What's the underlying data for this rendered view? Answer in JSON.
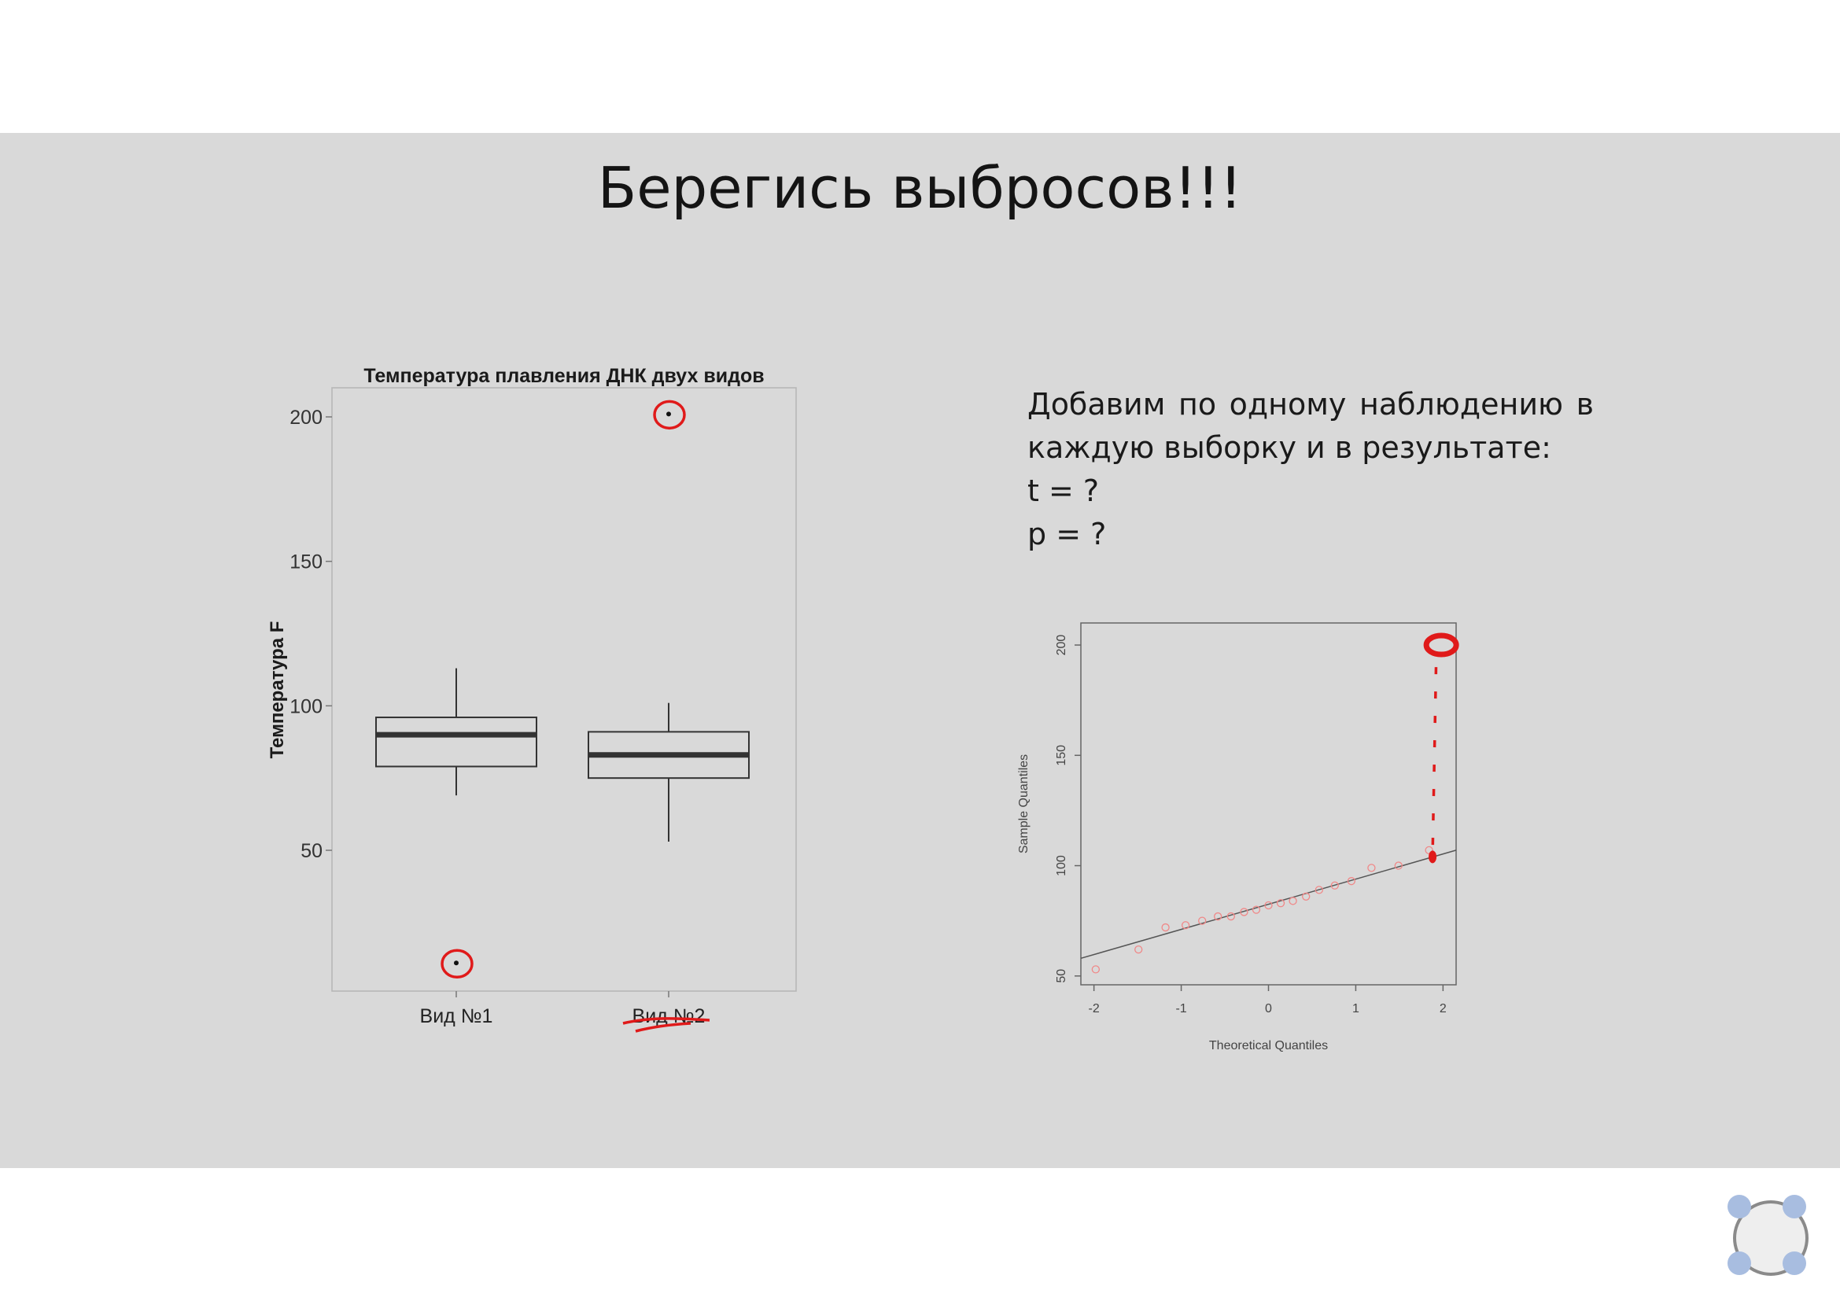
{
  "slide": {
    "title": "Берегись выбросов!!!",
    "text_lines": [
      [
        "Добавим",
        "по",
        "одному",
        "наблюдению",
        "в"
      ],
      "каждую выборку и в результате:",
      "t = ?",
      "p = ?"
    ]
  },
  "chart_data": [
    {
      "type": "boxplot",
      "title": "Температура плавления ДНК двух видов",
      "xlabel": "",
      "ylabel": "Температура F",
      "ylim": [
        0,
        210
      ],
      "y_ticks": [
        50,
        100,
        150,
        200
      ],
      "categories": [
        "Вид №1",
        "Вид №2"
      ],
      "boxes": [
        {
          "name": "Вид №1",
          "whisker_low": 69,
          "q1": 79,
          "median": 90,
          "q3": 96,
          "whisker_high": 113,
          "outliers": [
            11
          ]
        },
        {
          "name": "Вид №2",
          "whisker_low": 53,
          "q1": 75,
          "median": 83,
          "q3": 91,
          "whisker_high": 101,
          "outliers": [
            201
          ]
        }
      ],
      "annotations": "red circles around outliers, red underline under Вид №2"
    },
    {
      "type": "scatter",
      "title": "",
      "xlabel": "Theoretical Quantiles",
      "ylabel": "Sample Quantiles",
      "xlim": [
        -2.15,
        2.15
      ],
      "ylim": [
        46,
        210
      ],
      "x_ticks": [
        -2,
        -1,
        0,
        1,
        2
      ],
      "y_ticks": [
        50,
        100,
        150,
        200
      ],
      "points": [
        [
          -1.98,
          53
        ],
        [
          -1.49,
          62
        ],
        [
          -1.18,
          72
        ],
        [
          -0.95,
          73
        ],
        [
          -0.76,
          75
        ],
        [
          -0.58,
          77
        ],
        [
          -0.43,
          77
        ],
        [
          -0.28,
          79
        ],
        [
          -0.14,
          80
        ],
        [
          0.0,
          82
        ],
        [
          0.14,
          83
        ],
        [
          0.28,
          84
        ],
        [
          0.43,
          86
        ],
        [
          0.58,
          89
        ],
        [
          0.76,
          91
        ],
        [
          0.95,
          93
        ],
        [
          1.18,
          99
        ],
        [
          1.49,
          100
        ],
        [
          1.84,
          107
        ]
      ],
      "reference_line": [
        [
          -2.15,
          58
        ],
        [
          2.15,
          107
        ]
      ],
      "annotations": "red circle around a point at about (1.98, 200) with a dotted red line down to about (1.88, 104)"
    }
  ]
}
